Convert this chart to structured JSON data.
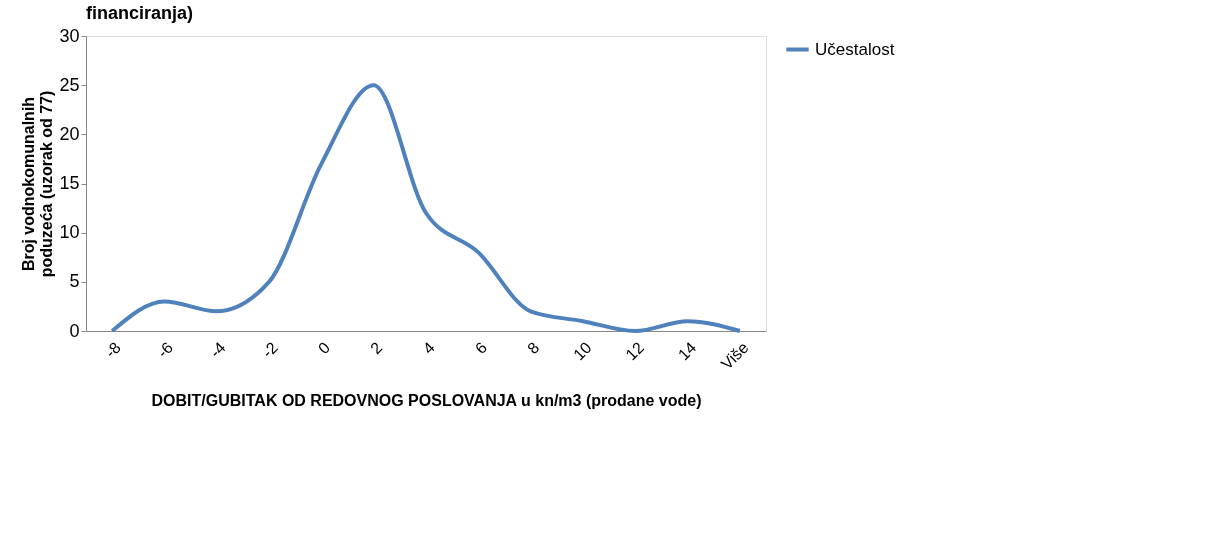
{
  "chart_data": {
    "type": "line",
    "title": "financiranja)",
    "categories": [
      "-8",
      "-6",
      "-4",
      "-2",
      "0",
      "2",
      "4",
      "6",
      "8",
      "10",
      "12",
      "14",
      "Više"
    ],
    "series": [
      {
        "name": "Učestalost",
        "color": "#4f81bd",
        "values": [
          0,
          3,
          2,
          5,
          17,
          25,
          12,
          8,
          2,
          1,
          0,
          1,
          0
        ]
      }
    ],
    "xlabel": "DOBIT/GUBITAK OD REDOVNOG POSLOVANJA u kn/m3 (prodane vode)",
    "ylabel": "Broj vodnokomunalnih\npoduzeća (uzorak od 77)",
    "ylim": [
      0,
      30
    ],
    "yticks": [
      0,
      5,
      10,
      15,
      20,
      25,
      30
    ],
    "grid": false,
    "legend": "right",
    "marker": "none",
    "line_style": "solid"
  }
}
